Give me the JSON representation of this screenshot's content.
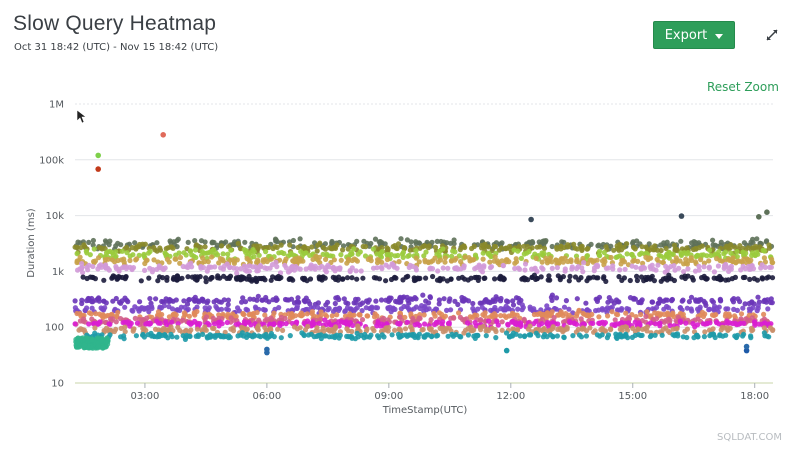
{
  "header": {
    "title": "Slow Query Heatmap",
    "subtitle": "Oct 31 18:42 (UTC) - Nov 15 18:42 (UTC)",
    "export_label": "Export",
    "reset_zoom_label": "Reset Zoom"
  },
  "watermark": "SQLDAT.COM",
  "colors": {
    "accent": "#2e9e5a",
    "text": "#3a3f44"
  },
  "icons": {
    "expand": "expand-arrows-icon",
    "caret": "caret-down-icon",
    "cursor": "mouse-pointer-icon"
  },
  "chart_data": {
    "type": "scatter",
    "title": "Slow Query Heatmap",
    "xlabel": "TimeStamp(UTC)",
    "ylabel": "Duration (ms)",
    "y_scale": "log",
    "ylim": [
      10,
      1000000
    ],
    "xlim_hours": [
      1.28,
      18.45
    ],
    "x_ticks": [
      {
        "hour": 3,
        "label": "03:00"
      },
      {
        "hour": 6,
        "label": "06:00"
      },
      {
        "hour": 9,
        "label": "09:00"
      },
      {
        "hour": 12,
        "label": "12:00"
      },
      {
        "hour": 15,
        "label": "15:00"
      },
      {
        "hour": 18,
        "label": "18:00"
      }
    ],
    "y_ticks": [
      {
        "value": 10,
        "label": "10"
      },
      {
        "value": 100,
        "label": "100"
      },
      {
        "value": 1000,
        "label": "1k"
      },
      {
        "value": 10000,
        "label": "10k"
      },
      {
        "value": 100000,
        "label": "100k"
      },
      {
        "value": 1000000,
        "label": "1M"
      }
    ],
    "grid": true,
    "bands": [
      {
        "center": 3100,
        "spread": 0.07,
        "color": "#5e7159"
      },
      {
        "center": 2600,
        "spread": 0.06,
        "color": "#8a8a2a"
      },
      {
        "center": 2000,
        "spread": 0.07,
        "color": "#9acb3c"
      },
      {
        "center": 1550,
        "spread": 0.06,
        "color": "#c9a24a"
      },
      {
        "center": 1150,
        "spread": 0.06,
        "color": "#d29ad8"
      },
      {
        "center": 750,
        "spread": 0.04,
        "color": "#1c1c3c"
      },
      {
        "center": 300,
        "spread": 0.06,
        "color": "#6a35b8"
      },
      {
        "center": 210,
        "spread": 0.05,
        "color": "#7a47c8"
      },
      {
        "center": 165,
        "spread": 0.05,
        "color": "#e08a5a"
      },
      {
        "center": 130,
        "spread": 0.05,
        "color": "#d15f8a"
      },
      {
        "center": 115,
        "spread": 0.04,
        "color": "#d91ed0"
      },
      {
        "center": 90,
        "spread": 0.05,
        "color": "#c98f6a"
      },
      {
        "center": 70,
        "spread": 0.04,
        "color": "#1e9aa8"
      }
    ],
    "cluster": {
      "hour_from": 1.3,
      "hour_to": 2.1,
      "y_from": 42,
      "y_to": 65,
      "color": "#2fb58c"
    },
    "outliers": [
      {
        "hour": 3.45,
        "y": 280000,
        "color": "#e06a5a"
      },
      {
        "hour": 1.85,
        "y": 120000,
        "color": "#7ed04a"
      },
      {
        "hour": 1.85,
        "y": 68000,
        "color": "#c23a1a"
      },
      {
        "hour": 6.0,
        "y": 40,
        "color": "#2a6aaa"
      },
      {
        "hour": 6.0,
        "y": 35,
        "color": "#2a6aaa"
      },
      {
        "hour": 11.9,
        "y": 38,
        "color": "#1e9aa8"
      },
      {
        "hour": 17.8,
        "y": 38,
        "color": "#1e5aa8"
      },
      {
        "hour": 17.8,
        "y": 45,
        "color": "#2a6aaa"
      },
      {
        "hour": 18.3,
        "y": 11500,
        "color": "#5e7159"
      },
      {
        "hour": 18.1,
        "y": 9500,
        "color": "#5e7159"
      },
      {
        "hour": 12.5,
        "y": 8500,
        "color": "#3a4a5a"
      },
      {
        "hour": 16.2,
        "y": 9800,
        "color": "#3a4a5a"
      }
    ]
  }
}
